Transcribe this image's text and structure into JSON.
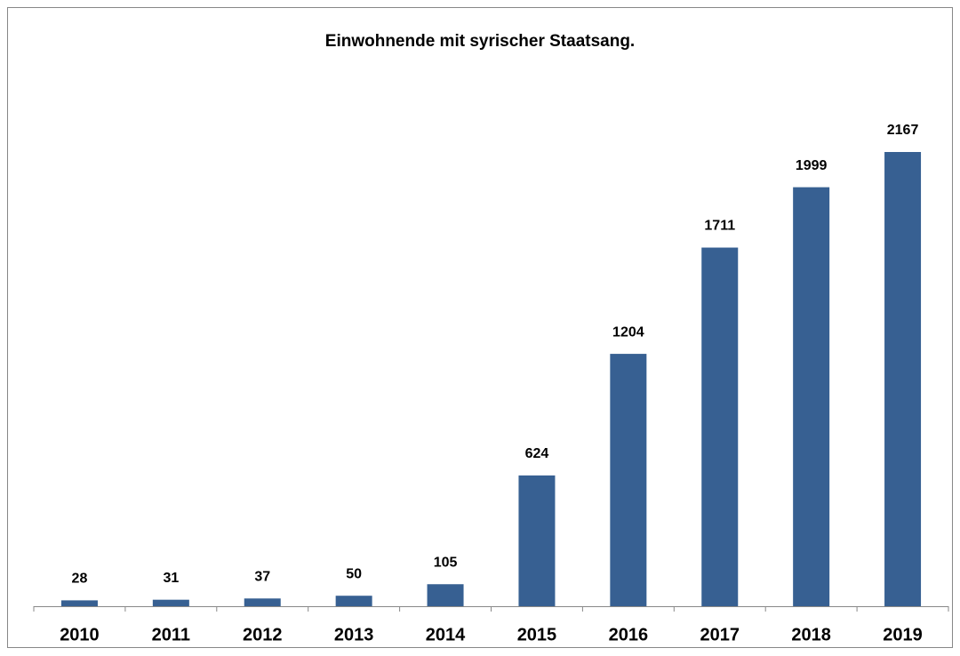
{
  "chart_data": {
    "type": "bar",
    "title": "Einwohnende mit syrischer Staatsang.",
    "categories": [
      "2010",
      "2011",
      "2012",
      "2013",
      "2014",
      "2015",
      "2016",
      "2017",
      "2018",
      "2019"
    ],
    "values": [
      28,
      31,
      37,
      50,
      105,
      624,
      1204,
      1711,
      1999,
      2167
    ],
    "color": "#376092"
  }
}
